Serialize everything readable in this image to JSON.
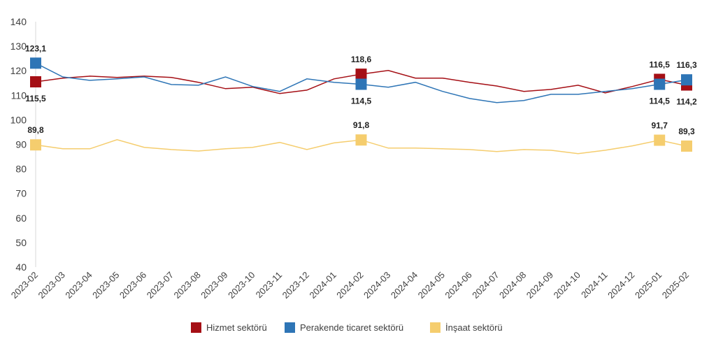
{
  "chart_data": {
    "type": "line",
    "title": "",
    "xlabel": "",
    "ylabel": "",
    "ylim": [
      40,
      140
    ],
    "yticks": [
      40,
      50,
      60,
      70,
      80,
      90,
      100,
      110,
      120,
      130,
      140
    ],
    "grid": false,
    "legend_position": "bottom",
    "categories": [
      "2023-02",
      "2023-03",
      "2023-04",
      "2023-05",
      "2023-06",
      "2023-07",
      "2023-08",
      "2023-09",
      "2023-10",
      "2023-11",
      "2023-12",
      "2024-01",
      "2024-02",
      "2024-03",
      "2024-04",
      "2024-05",
      "2024-06",
      "2024-07",
      "2024-08",
      "2024-09",
      "2024-10",
      "2024-11",
      "2024-12",
      "2025-01",
      "2025-02"
    ],
    "series": [
      {
        "name": "Hizmet sektörü",
        "color": "#a50f15",
        "values": [
          115.5,
          117.0,
          117.8,
          117.3,
          117.8,
          117.3,
          115.3,
          112.7,
          113.3,
          110.7,
          112.1,
          116.7,
          118.6,
          120.1,
          117.0,
          117.0,
          115.3,
          113.8,
          111.6,
          112.4,
          114.1,
          111.0,
          113.6,
          116.5,
          114.2
        ],
        "labels": [
          {
            "index": 0,
            "text": "115,5",
            "pos": "below"
          },
          {
            "index": 12,
            "text": "118,6",
            "pos": "above"
          },
          {
            "index": 23,
            "text": "116,5",
            "pos": "above"
          },
          {
            "index": 24,
            "text": "114,2",
            "pos": "below"
          }
        ]
      },
      {
        "name": "Perakende ticaret sektörü",
        "color": "#2e75b6",
        "values": [
          123.1,
          117.5,
          116.1,
          116.7,
          117.5,
          114.4,
          114.1,
          117.5,
          113.6,
          111.6,
          116.7,
          115.3,
          114.5,
          113.3,
          115.3,
          111.6,
          108.7,
          107.0,
          107.9,
          110.4,
          110.4,
          111.6,
          112.7,
          114.5,
          116.3
        ],
        "labels": [
          {
            "index": 0,
            "text": "123,1",
            "pos": "above"
          },
          {
            "index": 12,
            "text": "114,5",
            "pos": "below"
          },
          {
            "index": 23,
            "text": "114,5",
            "pos": "below"
          },
          {
            "index": 24,
            "text": "116,3",
            "pos": "above"
          }
        ]
      },
      {
        "name": "İnşaat sektörü",
        "color": "#f5cd6e",
        "values": [
          89.8,
          88.2,
          88.2,
          91.9,
          88.8,
          87.9,
          87.3,
          88.2,
          88.8,
          90.8,
          87.9,
          90.6,
          91.8,
          88.5,
          88.5,
          88.2,
          87.9,
          87.1,
          87.9,
          87.6,
          86.2,
          87.6,
          89.4,
          91.7,
          89.3
        ],
        "labels": [
          {
            "index": 0,
            "text": "89,8",
            "pos": "above"
          },
          {
            "index": 12,
            "text": "91,8",
            "pos": "above"
          },
          {
            "index": 23,
            "text": "91,7",
            "pos": "above"
          },
          {
            "index": 24,
            "text": "89,3",
            "pos": "above"
          }
        ]
      }
    ]
  }
}
